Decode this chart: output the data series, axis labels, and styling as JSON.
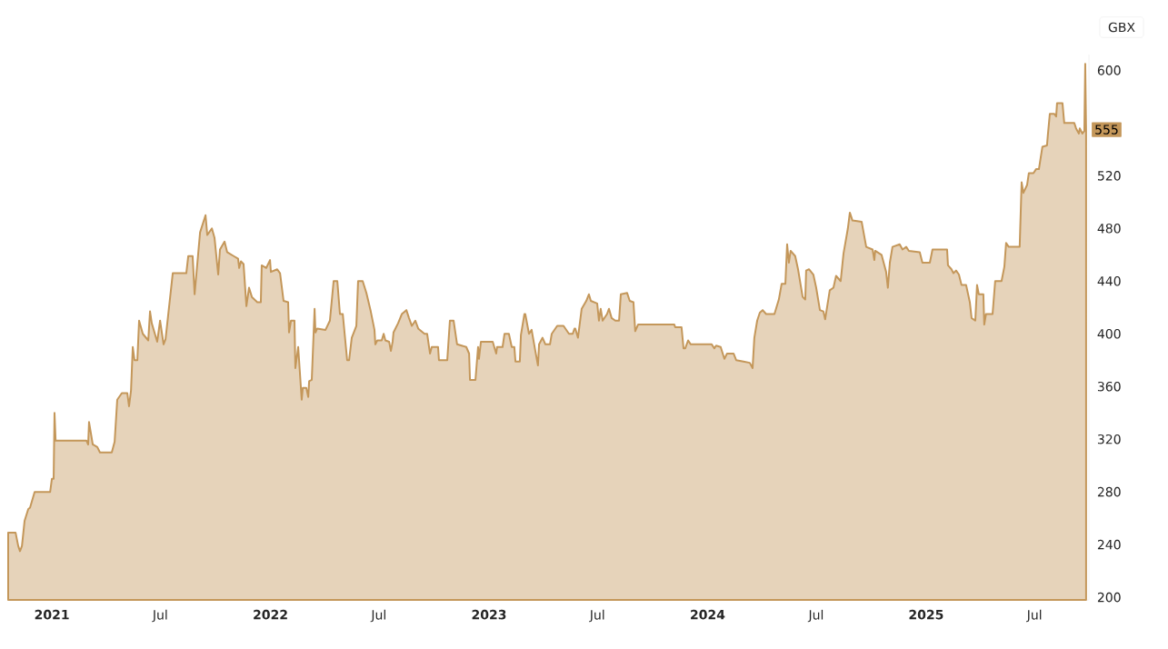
{
  "chart_data": {
    "type": "area",
    "ylabel": "GBX",
    "color": "#c4975a",
    "x": [
      2020.8,
      2020.834,
      2020.846,
      2020.854,
      2020.863,
      2020.875,
      2020.892,
      2020.9,
      2020.921,
      2020.992,
      2021.0,
      2021.008,
      2021.012,
      2021.017,
      2021.158,
      2021.166,
      2021.17,
      2021.187,
      2021.208,
      2021.22,
      2021.274,
      2021.287,
      2021.299,
      2021.32,
      2021.345,
      2021.353,
      2021.362,
      2021.37,
      2021.378,
      2021.391,
      2021.399,
      2021.416,
      2021.441,
      2021.449,
      2021.457,
      2021.482,
      2021.495,
      2021.511,
      2021.52,
      2021.553,
      2021.615,
      2021.624,
      2021.644,
      2021.653,
      2021.678,
      2021.703,
      2021.711,
      2021.732,
      2021.744,
      2021.761,
      2021.769,
      2021.79,
      2021.802,
      2021.832,
      2021.852,
      2021.857,
      2021.865,
      2021.877,
      2021.89,
      2021.902,
      2021.915,
      2021.94,
      2021.956,
      2021.96,
      2021.981,
      2021.998,
      2022.002,
      2022.031,
      2022.044,
      2022.06,
      2022.081,
      2022.085,
      2022.094,
      2022.11,
      2022.114,
      2022.127,
      2022.143,
      2022.148,
      2022.164,
      2022.173,
      2022.177,
      2022.189,
      2022.202,
      2022.206,
      2022.214,
      2022.252,
      2022.272,
      2022.289,
      2022.306,
      2022.318,
      2022.331,
      2022.351,
      2022.36,
      2022.372,
      2022.393,
      2022.401,
      2022.422,
      2022.439,
      2022.459,
      2022.476,
      2022.48,
      2022.489,
      2022.509,
      2022.518,
      2022.526,
      2022.543,
      2022.551,
      2022.559,
      2022.563,
      2022.584,
      2022.601,
      2022.622,
      2022.634,
      2022.647,
      2022.663,
      2022.676,
      2022.705,
      2022.717,
      2022.73,
      2022.738,
      2022.767,
      2022.771,
      2022.809,
      2022.821,
      2022.838,
      2022.854,
      2022.896,
      2022.909,
      2022.913,
      2022.938,
      2022.95,
      2022.954,
      2022.963,
      2023.017,
      2023.033,
      2023.037,
      2023.062,
      2023.071,
      2023.091,
      2023.104,
      2023.116,
      2023.121,
      2023.141,
      2023.146,
      2023.162,
      2023.166,
      2023.183,
      2023.195,
      2023.212,
      2023.224,
      2023.229,
      2023.245,
      2023.258,
      2023.279,
      2023.287,
      2023.312,
      2023.341,
      2023.366,
      2023.383,
      2023.391,
      2023.395,
      2023.407,
      2023.424,
      2023.445,
      2023.457,
      2023.466,
      2023.495,
      2023.503,
      2023.511,
      2023.52,
      2023.54,
      2023.549,
      2023.561,
      2023.578,
      2023.595,
      2023.603,
      2023.632,
      2023.644,
      2023.661,
      2023.669,
      2023.682,
      2023.848,
      2023.852,
      2023.881,
      2023.89,
      2023.898,
      2023.911,
      2023.923,
      2024.019,
      2024.031,
      2024.039,
      2024.06,
      2024.077,
      2024.089,
      2024.119,
      2024.131,
      2024.164,
      2024.193,
      2024.206,
      2024.214,
      2024.227,
      2024.239,
      2024.252,
      2024.268,
      2024.306,
      2024.326,
      2024.339,
      2024.356,
      2024.364,
      2024.372,
      2024.38,
      2024.401,
      2024.414,
      2024.435,
      2024.447,
      2024.451,
      2024.464,
      2024.484,
      2024.497,
      2024.514,
      2024.53,
      2024.538,
      2024.559,
      2024.576,
      2024.588,
      2024.609,
      2024.622,
      2024.642,
      2024.651,
      2024.663,
      2024.705,
      2024.726,
      2024.755,
      2024.763,
      2024.767,
      2024.796,
      2024.817,
      2024.825,
      2024.834,
      2024.846,
      2024.879,
      2024.892,
      2024.909,
      2024.921,
      2024.971,
      2024.983,
      2025.017,
      2025.029,
      2025.096,
      2025.1,
      2025.116,
      2025.125,
      2025.137,
      2025.15,
      2025.162,
      2025.183,
      2025.2,
      2025.208,
      2025.225,
      2025.233,
      2025.241,
      2025.262,
      2025.266,
      2025.274,
      2025.304,
      2025.316,
      2025.345,
      2025.358,
      2025.366,
      2025.378,
      2025.428,
      2025.437,
      2025.445,
      2025.462,
      2025.47,
      2025.491,
      2025.503,
      2025.516,
      2025.532,
      2025.553,
      2025.557,
      2025.566,
      2025.586,
      2025.595,
      2025.599,
      2025.624,
      2025.632,
      2025.678,
      2025.686,
      2025.699,
      2025.703,
      2025.715,
      2025.724,
      2025.728,
      2025.732
    ],
    "values": [
      249,
      249,
      239,
      235,
      239,
      258,
      267,
      268,
      280,
      280,
      290,
      290,
      340,
      319,
      319,
      316,
      333,
      316,
      314,
      310,
      310,
      318,
      350,
      355,
      355,
      345,
      357,
      390,
      380,
      380,
      410,
      400,
      395,
      417,
      408,
      394,
      410,
      392,
      396,
      446,
      446,
      459,
      459,
      430,
      477,
      490,
      475,
      480,
      473,
      445,
      464,
      470,
      462,
      459,
      457,
      450,
      455,
      453,
      421,
      435,
      428,
      424,
      424,
      452,
      450,
      456,
      447,
      449,
      446,
      425,
      424,
      401,
      410,
      410,
      374,
      390,
      350,
      359,
      359,
      352,
      364,
      365,
      419,
      401,
      404,
      403,
      410,
      440,
      440,
      415,
      415,
      380,
      380,
      397,
      406,
      440,
      440,
      431,
      417,
      403,
      392,
      395,
      395,
      400,
      395,
      394,
      387,
      394,
      401,
      408,
      415,
      418,
      412,
      406,
      410,
      404,
      400,
      400,
      385,
      390,
      390,
      380,
      380,
      410,
      410,
      392,
      390,
      385,
      365,
      365,
      390,
      381,
      394,
      394,
      385,
      390,
      390,
      400,
      400,
      390,
      390,
      379,
      379,
      399,
      415,
      415,
      400,
      403,
      387,
      376,
      392,
      397,
      392,
      392,
      400,
      406,
      406,
      400,
      400,
      404,
      404,
      397,
      419,
      425,
      430,
      425,
      423,
      410,
      419,
      410,
      415,
      419,
      412,
      410,
      410,
      430,
      431,
      425,
      424,
      402,
      407,
      407,
      405,
      405,
      389,
      389,
      395,
      392,
      392,
      389,
      391,
      390,
      381,
      385,
      385,
      380,
      379,
      378,
      374,
      397,
      410,
      416,
      418,
      415,
      415,
      426,
      438,
      438,
      468,
      454,
      463,
      459,
      449,
      428,
      426,
      448,
      449,
      445,
      435,
      418,
      417,
      411,
      433,
      435,
      444,
      440,
      461,
      480,
      492,
      486,
      485,
      466,
      464,
      456,
      463,
      460,
      447,
      435,
      454,
      466,
      468,
      464,
      466,
      463,
      462,
      454,
      454,
      464,
      464,
      452,
      449,
      446,
      448,
      445,
      437,
      437,
      424,
      412,
      410,
      437,
      430,
      430,
      407,
      415,
      415,
      440,
      440,
      451,
      469,
      466,
      466,
      515,
      507,
      513,
      522,
      522,
      525,
      525,
      542,
      543,
      551,
      567,
      567,
      565,
      575,
      575,
      560,
      560,
      556,
      552,
      556,
      552,
      554,
      605,
      555
    ],
    "xlim": [
      2020.8,
      2025.745
    ],
    "xticks": [
      {
        "value": 2021,
        "label": "2021"
      },
      {
        "value": 2021.496,
        "label": "Jul"
      },
      {
        "value": 2022,
        "label": "2022"
      },
      {
        "value": 2022.496,
        "label": "Jul"
      },
      {
        "value": 2023,
        "label": "2023"
      },
      {
        "value": 2023.496,
        "label": "Jul"
      },
      {
        "value": 2024,
        "label": "2024"
      },
      {
        "value": 2024.497,
        "label": "Jul"
      },
      {
        "value": 2025,
        "label": "2025"
      },
      {
        "value": 2025.496,
        "label": "Jul"
      }
    ],
    "ylim": [
      198,
      612
    ],
    "yticks": [
      200,
      240,
      280,
      320,
      360,
      400,
      440,
      480,
      520,
      600
    ],
    "annotations": [
      {
        "text": "555",
        "x": 2025.732,
        "y": 555
      }
    ]
  }
}
